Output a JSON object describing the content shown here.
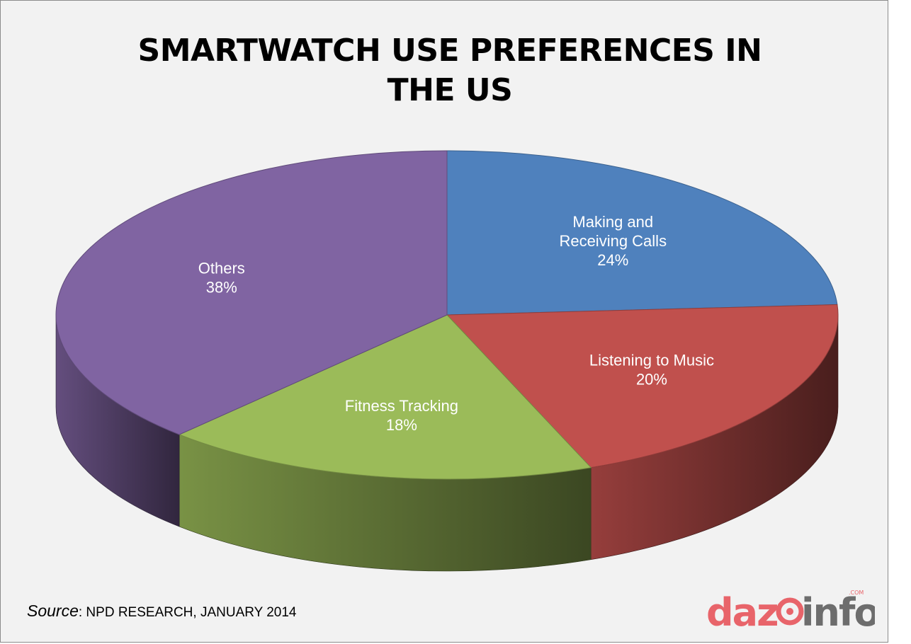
{
  "chart_data": {
    "type": "pie",
    "style": "3d",
    "title": "SMARTWATCH USE PREFERENCES IN THE US",
    "title_lines": [
      "SMARTWATCH USE PREFERENCES IN",
      "THE US"
    ],
    "slices": [
      {
        "label_lines": [
          "Making and",
          "Receiving Calls"
        ],
        "value": 24,
        "value_label": "24%",
        "color": "#4f81bd"
      },
      {
        "label_lines": [
          "Listening to Music"
        ],
        "value": 20,
        "value_label": "20%",
        "color": "#c0504d"
      },
      {
        "label_lines": [
          "Fitness Tracking"
        ],
        "value": 18,
        "value_label": "18%",
        "color": "#9bbb59"
      },
      {
        "label_lines": [
          "Others"
        ],
        "value": 38,
        "value_label": "38%",
        "color": "#8064a2"
      }
    ]
  },
  "source": {
    "lead": "Source",
    "text": ": NPD RESEARCH, JANUARY 2014"
  },
  "logo": {
    "text_red": "daz",
    "text_grey": "info",
    "suffix": ".COM",
    "red": "#e8646a",
    "grey": "#6d6d6d"
  },
  "colors": {
    "background": "#f2f2f2",
    "border": "#8c8c8c"
  }
}
